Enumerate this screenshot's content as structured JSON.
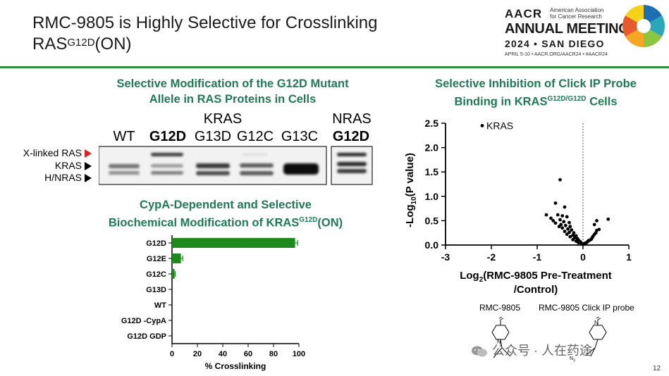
{
  "slide": {
    "title_line1": "RMC-9805 is Highly Selective for Crosslinking",
    "title_line2_main": "RAS",
    "title_line2_sup": "G12D",
    "title_line2_end": "(ON)",
    "page_number": "12"
  },
  "logo": {
    "aacr": "AACR",
    "org_line1": "American Association",
    "org_line2": "for Cancer Research",
    "annual_meeting": "ANNUAL MEETING",
    "year_city": "2024 • SAN DIEGO",
    "details": "APRIL 5-10 • AACR.ORG/AACR24 • #AACR24",
    "colors": [
      "#1b6fb5",
      "#2aa8b8",
      "#8cc63f",
      "#f5a623",
      "#e8592b",
      "#f7d117"
    ]
  },
  "blot_panel": {
    "heading_line1": "Selective Modification of the G12D Mutant",
    "heading_line2": "Allele in RAS Proteins in Cells",
    "kras_group": "KRAS",
    "nras_group": "NRAS",
    "lanes": [
      "WT",
      "G12D",
      "G13D",
      "G12C",
      "G13C"
    ],
    "nras_lane": "G12D",
    "rows": [
      "X-linked RAS",
      "KRAS",
      "H/NRAS"
    ],
    "arrow_colors": [
      "#e02020",
      "#000000",
      "#000000"
    ]
  },
  "bar_panel": {
    "heading_line1": "CypA-Dependent and Selective",
    "heading_line2_main": "Biochemical Modification of KRAS",
    "heading_line2_sup": "G12D",
    "heading_line2_end": "(ON)"
  },
  "volcano_panel": {
    "heading_line1": "Selective Inhibition of Click IP Probe",
    "heading_line2_main": "Binding in KRAS",
    "heading_line2_sup": "G12D/G12D",
    "heading_line2_end": " Cells",
    "xlabel_line1": "Log",
    "xlabel_sub": "2",
    "xlabel_line1_end": "(RMC-9805 Pre-Treatment",
    "xlabel_line2": "/Control)",
    "ylabel_main": "-Log",
    "ylabel_sub": "10",
    "ylabel_end": "(P value)"
  },
  "molecules": {
    "left_label": "RMC-9805",
    "right_label": "RMC-9805 Click IP probe",
    "n_atom": "N",
    "n3_label": "N"
  },
  "watermark": {
    "text": "公众号 · 人在药途"
  },
  "chart_data": [
    {
      "type": "bar",
      "orientation": "horizontal",
      "categories": [
        "G12D",
        "G12E",
        "G12C",
        "G13D",
        "WT",
        "G12D -CypA",
        "G12D GDP"
      ],
      "values": [
        97,
        7,
        2,
        0,
        0,
        0,
        0
      ],
      "errors": [
        2,
        1.5,
        0.5,
        0,
        0,
        0,
        0
      ],
      "title": "CypA-Dependent and Selective Biochemical Modification of KRAS G12D (ON)",
      "xlabel": "% Crosslinking",
      "xlim": [
        0,
        100
      ],
      "xticks": [
        0,
        20,
        40,
        60,
        80,
        100
      ],
      "color": "#1e8a1e"
    },
    {
      "type": "scatter",
      "title": "Selective Inhibition of Click IP Probe Binding in KRAS G12D/G12D Cells",
      "xlabel": "Log2(RMC-9805 Pre-Treatment /Control)",
      "ylabel": "-Log10(P value)",
      "xlim": [
        -3,
        1
      ],
      "ylim": [
        0,
        2.5
      ],
      "xticks": [
        -3,
        -2,
        -1,
        0,
        1
      ],
      "yticks": [
        "0.0",
        "0.5",
        "1.0",
        "1.5",
        "2.0",
        "2.5"
      ],
      "annotation": {
        "label": "KRAS",
        "x": -2.2,
        "y": 2.45
      },
      "points": [
        [
          -2.2,
          2.45
        ],
        [
          -0.5,
          1.34
        ],
        [
          -0.6,
          0.86
        ],
        [
          -0.4,
          0.78
        ],
        [
          -0.8,
          0.62
        ],
        [
          -0.55,
          0.62
        ],
        [
          -0.45,
          0.6
        ],
        [
          -0.35,
          0.58
        ],
        [
          -0.5,
          0.52
        ],
        [
          -0.42,
          0.48
        ],
        [
          -0.3,
          0.46
        ],
        [
          -0.48,
          0.42
        ],
        [
          -0.38,
          0.4
        ],
        [
          -0.28,
          0.38
        ],
        [
          -0.45,
          0.35
        ],
        [
          -0.33,
          0.33
        ],
        [
          -0.25,
          0.31
        ],
        [
          -0.4,
          0.28
        ],
        [
          -0.3,
          0.26
        ],
        [
          -0.2,
          0.25
        ],
        [
          -0.35,
          0.22
        ],
        [
          -0.22,
          0.2
        ],
        [
          -0.15,
          0.19
        ],
        [
          -0.28,
          0.17
        ],
        [
          -0.18,
          0.15
        ],
        [
          -0.12,
          0.13
        ],
        [
          -0.22,
          0.11
        ],
        [
          -0.1,
          0.1
        ],
        [
          -0.15,
          0.08
        ],
        [
          -0.06,
          0.07
        ],
        [
          -0.1,
          0.05
        ],
        [
          -0.04,
          0.04
        ],
        [
          -0.02,
          0.02
        ],
        [
          0.02,
          0.02
        ],
        [
          0.05,
          0.04
        ],
        [
          0.08,
          0.05
        ],
        [
          0.1,
          0.07
        ],
        [
          0.12,
          0.09
        ],
        [
          0.15,
          0.1
        ],
        [
          0.18,
          0.12
        ],
        [
          0.2,
          0.15
        ],
        [
          0.22,
          0.18
        ],
        [
          0.25,
          0.22
        ],
        [
          0.28,
          0.25
        ],
        [
          0.3,
          0.3
        ],
        [
          0.35,
          0.32
        ],
        [
          0.25,
          0.42
        ],
        [
          0.3,
          0.5
        ],
        [
          0.55,
          0.53
        ],
        [
          -0.6,
          0.45
        ],
        [
          -0.52,
          0.38
        ],
        [
          -0.65,
          0.5
        ],
        [
          -0.7,
          0.55
        ]
      ],
      "color": "#000000"
    }
  ]
}
